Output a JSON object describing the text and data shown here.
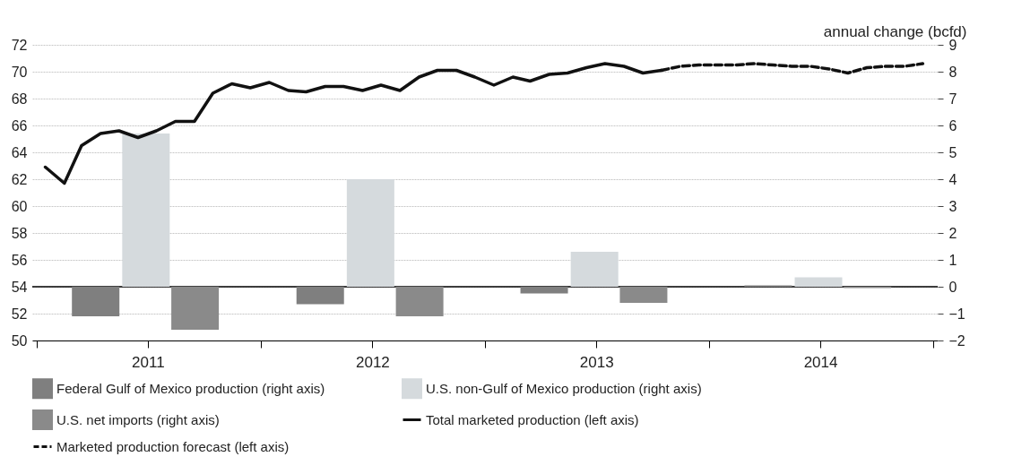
{
  "chart_data": {
    "type": "line",
    "y2label": "annual change (bcfd)",
    "xlim": [
      "2011-01-01",
      "2015-01-01"
    ],
    "xticks": [
      {
        "value": "2011-01-01",
        "label": null
      },
      {
        "value": "2011-07-01",
        "label": "2011"
      },
      {
        "value": "2012-01-01",
        "label": null
      },
      {
        "value": "2012-07-01",
        "label": "2012"
      },
      {
        "value": "2013-01-01",
        "label": null
      },
      {
        "value": "2013-07-01",
        "label": "2013"
      },
      {
        "value": "2014-01-01",
        "label": null
      },
      {
        "value": "2014-07-01",
        "label": "2014"
      },
      {
        "value": "2015-01-01",
        "label": null
      }
    ],
    "ylim": [
      50,
      72
    ],
    "yticks": [
      50,
      52,
      54,
      56,
      58,
      60,
      62,
      64,
      66,
      68,
      70,
      72
    ],
    "y2lim": [
      -2,
      9
    ],
    "y2ticks": [
      -2,
      -1,
      0,
      1,
      2,
      3,
      4,
      5,
      6,
      7,
      8,
      9
    ],
    "grid": "y",
    "legend": "bottom",
    "marker": "none",
    "ref_lines": [
      {
        "axis": "y2",
        "value": 0,
        "label": null,
        "color": "#000000"
      }
    ],
    "series": [
      {
        "name": "Federal Gulf of Mexico production (right axis)",
        "type": "bar",
        "axis": "y2",
        "color": "#7f7f7f",
        "x": [
          "2011-04-07",
          "2012-04-07",
          "2013-04-07",
          "2014-04-07"
        ],
        "values": [
          -1.1,
          -0.65,
          -0.25,
          0.05
        ]
      },
      {
        "name": "U.S. non-Gulf of Mexico production (right axis)",
        "type": "bar",
        "axis": "y2",
        "color": "#d5dadd",
        "x": [
          "2011-06-28",
          "2012-06-28",
          "2013-06-28",
          "2014-06-28"
        ],
        "values": [
          5.7,
          4.0,
          1.3,
          0.35
        ]
      },
      {
        "name": "U.S. net imports (right axis)",
        "type": "bar",
        "axis": "y2",
        "color": "#8a8a8a",
        "x": [
          "2011-09-16",
          "2012-09-16",
          "2013-09-16",
          "2014-09-16"
        ],
        "values": [
          -1.6,
          -1.1,
          -0.6,
          -0.05
        ]
      },
      {
        "name": "Total marketed production (left axis)",
        "color": "#111111",
        "line_style": "solid",
        "x": [
          "2011-01-15",
          "2011-02-15",
          "2011-03-15",
          "2011-04-15",
          "2011-05-15",
          "2011-06-15",
          "2011-07-15",
          "2011-08-15",
          "2011-09-15",
          "2011-10-15",
          "2011-11-15",
          "2011-12-15",
          "2012-01-15",
          "2012-02-15",
          "2012-03-15",
          "2012-04-15",
          "2012-05-15",
          "2012-06-15",
          "2012-07-15",
          "2012-08-15",
          "2012-09-15",
          "2012-10-15",
          "2012-11-15",
          "2012-12-15",
          "2013-01-15",
          "2013-02-15",
          "2013-03-15",
          "2013-04-15",
          "2013-05-15",
          "2013-06-15",
          "2013-07-15",
          "2013-08-15",
          "2013-09-15",
          "2013-10-15"
        ],
        "values": [
          62.9,
          61.7,
          64.5,
          65.4,
          65.6,
          65.1,
          65.6,
          66.3,
          66.3,
          68.4,
          69.1,
          68.8,
          69.2,
          68.6,
          68.5,
          68.9,
          68.9,
          68.6,
          69.0,
          68.6,
          69.6,
          70.1,
          70.1,
          69.6,
          69.0,
          69.6,
          69.3,
          69.8,
          69.9,
          70.3,
          70.6,
          70.4,
          69.9,
          70.1
        ]
      },
      {
        "name": "Marketed production forecast (left axis)",
        "color": "#111111",
        "line_style": "dashed",
        "x": [
          "2013-10-15",
          "2013-11-15",
          "2013-12-15",
          "2014-01-15",
          "2014-02-15",
          "2014-03-15",
          "2014-04-15",
          "2014-05-15",
          "2014-06-15",
          "2014-07-15",
          "2014-08-15",
          "2014-09-15",
          "2014-10-15",
          "2014-11-15",
          "2014-12-15"
        ],
        "values": [
          70.1,
          70.4,
          70.5,
          70.5,
          70.5,
          70.6,
          70.5,
          70.4,
          70.4,
          70.2,
          69.9,
          70.3,
          70.4,
          70.4,
          70.6
        ]
      }
    ]
  }
}
